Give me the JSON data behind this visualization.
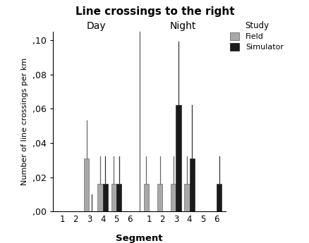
{
  "title": "Line crossings to the right",
  "xlabel": "Segment",
  "ylabel": "Number of line crossings per km",
  "day_segments": [
    "1",
    "2",
    "3",
    "4",
    "5",
    "6"
  ],
  "night_segments": [
    "1",
    "2",
    "3",
    "4",
    "5",
    "6"
  ],
  "day_field": [
    0.0,
    0.0,
    0.031,
    0.016,
    0.016,
    0.0
  ],
  "day_simulator": [
    0.0,
    0.0,
    0.0,
    0.016,
    0.016,
    0.0
  ],
  "night_field": [
    0.016,
    0.016,
    0.016,
    0.016,
    0.0,
    0.0
  ],
  "night_simulator": [
    0.0,
    0.0,
    0.062,
    0.031,
    0.0,
    0.016
  ],
  "day_field_err": [
    0.0,
    0.0,
    0.022,
    0.016,
    0.016,
    0.0
  ],
  "day_simulator_err": [
    0.0,
    0.0,
    0.01,
    0.016,
    0.016,
    0.0
  ],
  "night_field_err": [
    0.016,
    0.016,
    0.016,
    0.016,
    0.0,
    0.0
  ],
  "night_simulator_err": [
    0.0,
    0.0,
    0.037,
    0.031,
    0.0,
    0.016
  ],
  "field_color": "#a8a8a8",
  "simulator_color": "#1a1a1a",
  "ylim": [
    0.0,
    0.105
  ],
  "yticks": [
    0.0,
    0.02,
    0.04,
    0.06,
    0.08,
    0.1
  ],
  "ytick_labels": [
    ",00",
    ",02",
    ",04",
    ",06",
    ",08",
    ",10"
  ],
  "day_label": "Day",
  "night_label": "Night",
  "legend_title": "Study",
  "legend_field": "Field",
  "legend_simulator": "Simulator",
  "bar_width": 0.38
}
